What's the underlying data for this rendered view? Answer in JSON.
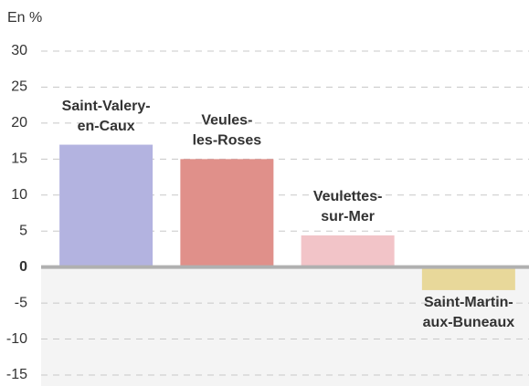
{
  "chart_data": {
    "type": "bar",
    "y_label": "En %",
    "categories": [
      [
        "Saint-Valery-",
        "en-Caux"
      ],
      [
        "Veules-",
        "les-Roses"
      ],
      [
        "Veulettes-",
        "sur-Mer"
      ],
      [
        "Saint-Martin-",
        "aux-Buneaux"
      ]
    ],
    "values": [
      17,
      15,
      4.4,
      -3.2
    ],
    "colors": [
      "#b3b3e0",
      "#e0908a",
      "#f2c4c8",
      "#e8d89a"
    ],
    "ylim": [
      -15,
      30
    ],
    "yticks": [
      -15,
      -10,
      -5,
      0,
      5,
      10,
      15,
      20,
      25,
      30
    ],
    "grid": true
  }
}
